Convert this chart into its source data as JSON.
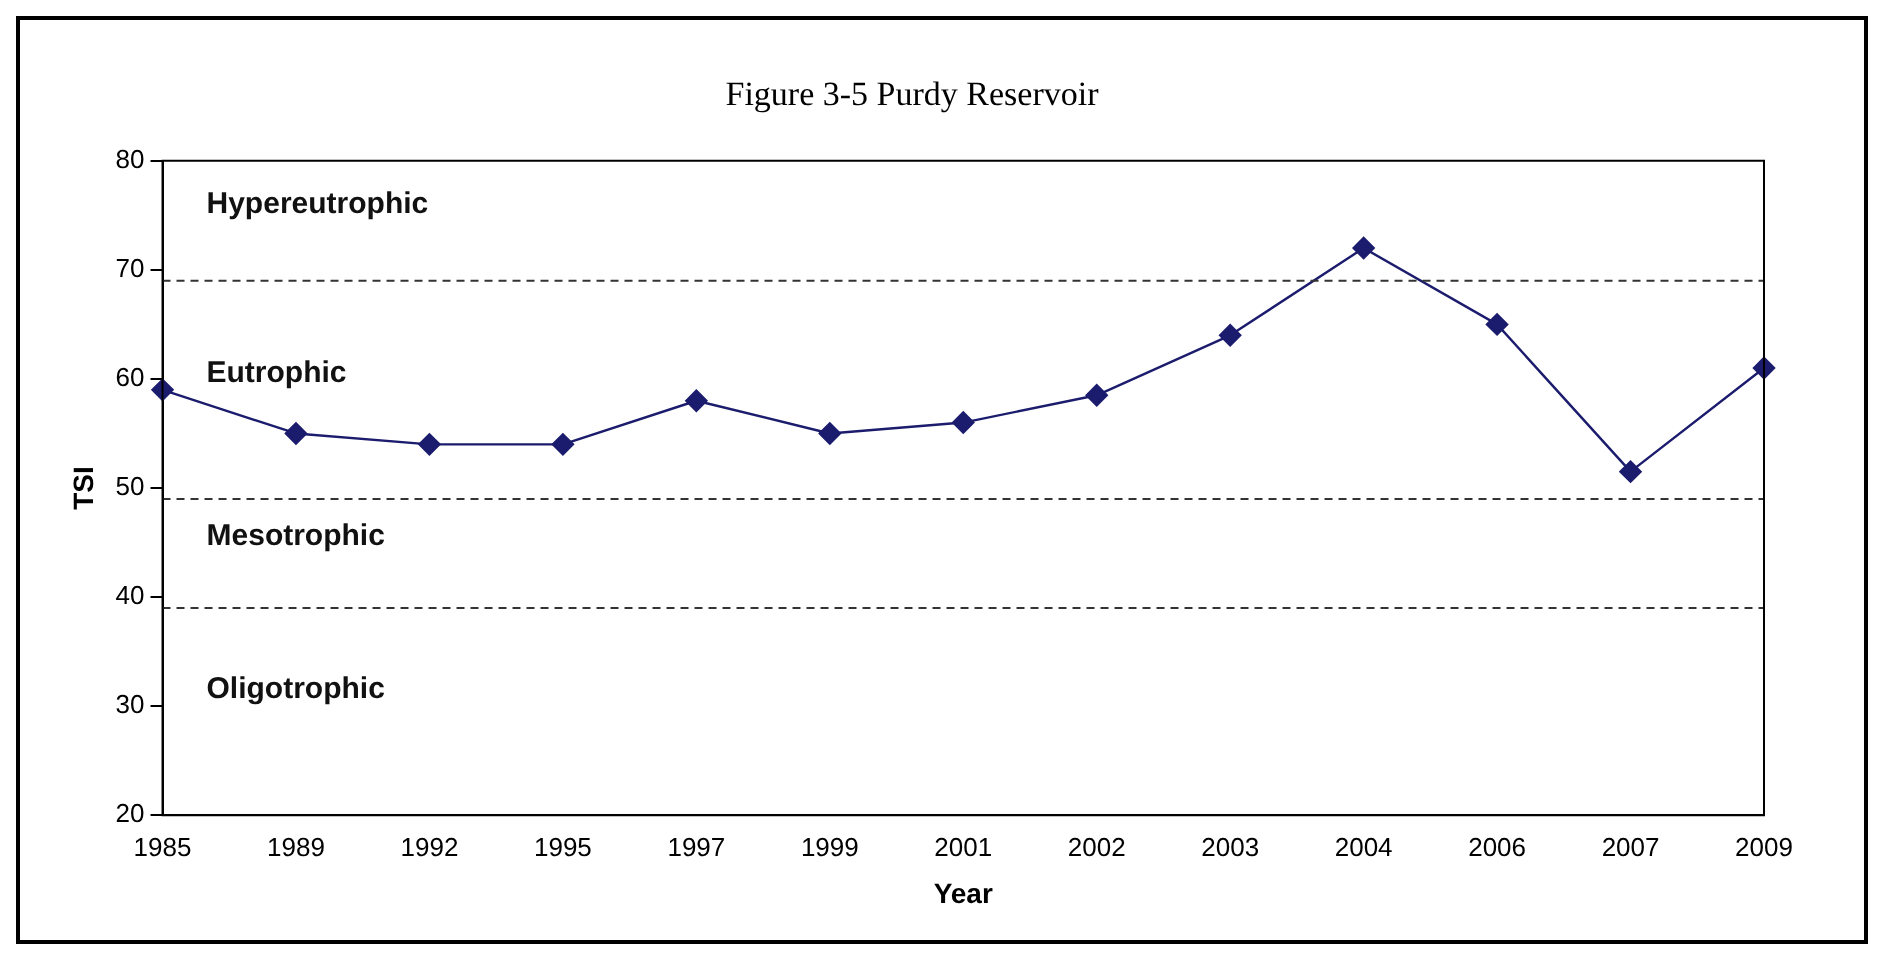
{
  "chart_data": {
    "type": "line",
    "title": "Figure 3-5 Purdy Reservoir",
    "xlabel": "Year",
    "ylabel": "TSI",
    "categories": [
      "1985",
      "1989",
      "1992",
      "1995",
      "1997",
      "1999",
      "2001",
      "2002",
      "2003",
      "2004",
      "2006",
      "2007",
      "2009"
    ],
    "series": [
      {
        "color": "#1c1c6e",
        "values": [
          59,
          55,
          54,
          54,
          58,
          55,
          56,
          58.5,
          64,
          72,
          65,
          51.5,
          61
        ]
      }
    ],
    "ylim": [
      20,
      80
    ],
    "yticks": [
      20,
      30,
      40,
      50,
      60,
      70,
      80
    ],
    "grid": false,
    "legend": false,
    "marker": "diamond",
    "line_style": "solid",
    "ref_lines": [
      {
        "axis": "y",
        "value": 69,
        "line_style": "dashed",
        "color": "#333333"
      },
      {
        "axis": "y",
        "value": 49,
        "line_style": "dashed",
        "color": "#333333"
      },
      {
        "axis": "y",
        "value": 39,
        "line_style": "dashed",
        "color": "#333333"
      }
    ],
    "annotations": [
      "Hypereutrophic",
      "Eutrophic",
      "Mesotrophic",
      "Oligotrophic"
    ]
  }
}
